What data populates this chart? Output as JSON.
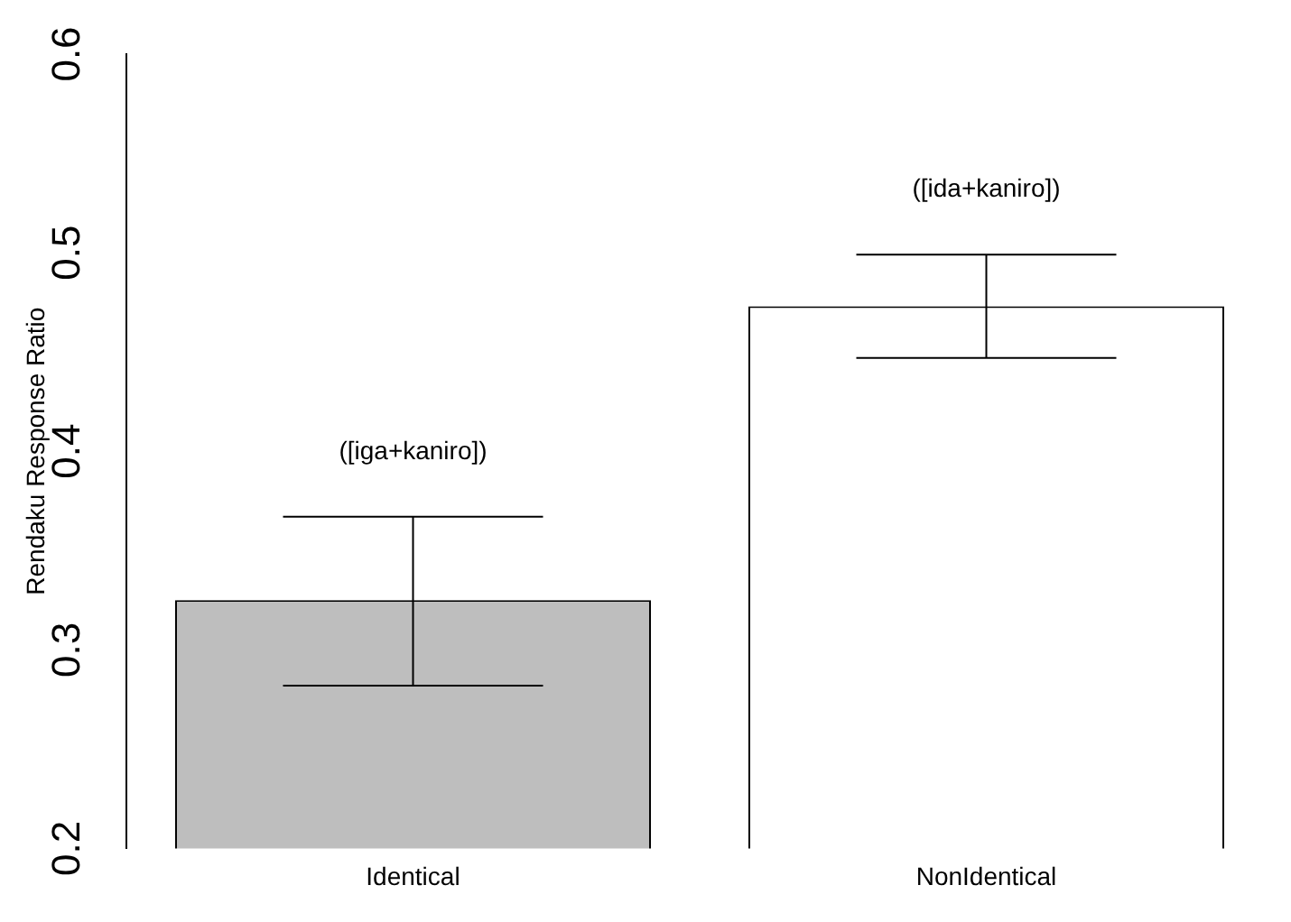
{
  "chart_data": {
    "type": "bar",
    "ylabel": "Rendaku Response Ratio",
    "categories": [
      "Identical",
      "NonIdentical"
    ],
    "values": [
      0.325,
      0.473
    ],
    "colors": [
      "#bebebe",
      "#ffffff"
    ],
    "errors": [
      [
        0.282,
        0.367
      ],
      [
        0.447,
        0.499
      ]
    ],
    "ylim": [
      0.2,
      0.6
    ],
    "yticks": [
      0.2,
      0.3,
      0.4,
      0.5,
      0.6
    ],
    "grid": false,
    "legend": false,
    "annotations": [
      "([iga+kaniro])",
      "([ida+kaniro])"
    ]
  }
}
